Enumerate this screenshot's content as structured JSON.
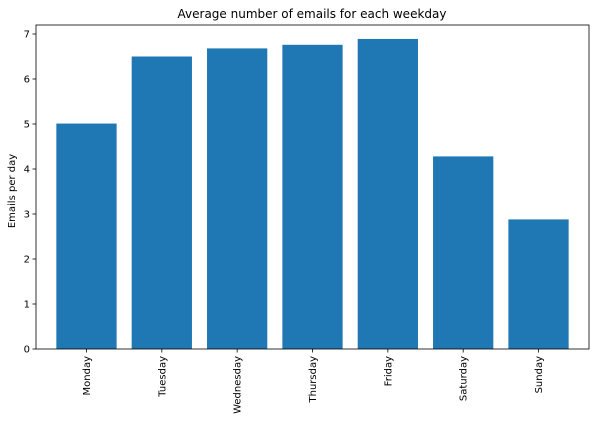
{
  "chart_data": {
    "type": "bar",
    "title": "Average number of emails for each weekday",
    "xlabel": "",
    "ylabel": "Emails per day",
    "categories": [
      "Monday",
      "Tuesday",
      "Wednesday",
      "Thursday",
      "Friday",
      "Saturday",
      "Sunday"
    ],
    "values": [
      5.01,
      6.5,
      6.68,
      6.76,
      6.89,
      4.28,
      2.88
    ],
    "ylim": [
      0,
      7.2
    ],
    "yticks": [
      0,
      1,
      2,
      3,
      4,
      5,
      6,
      7
    ],
    "bar_color": "#1f77b4",
    "grid": false,
    "legend": "none"
  }
}
